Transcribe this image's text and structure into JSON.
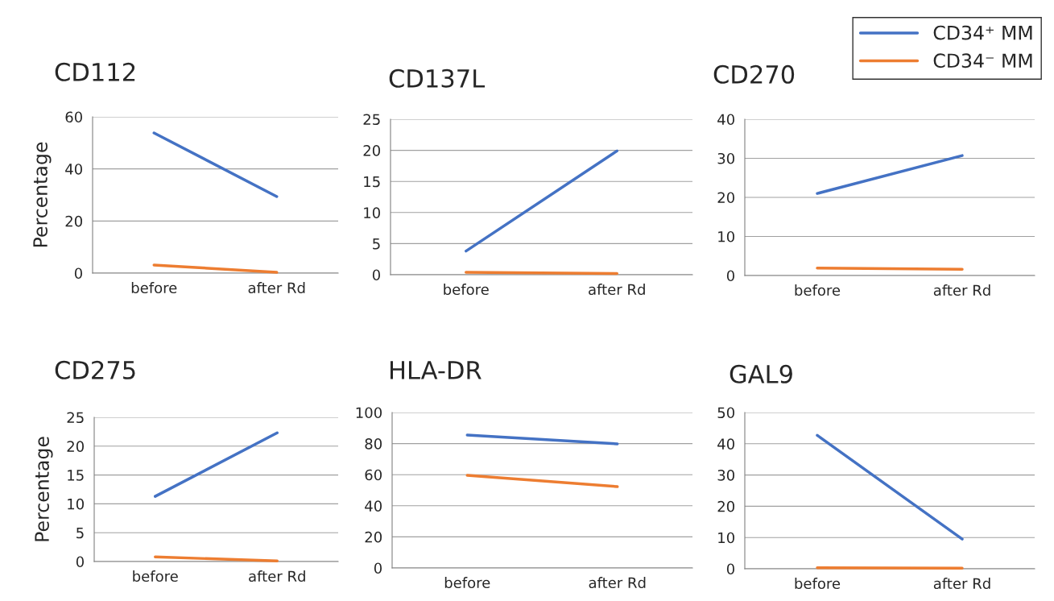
{
  "chart_data": [
    {
      "type": "line",
      "title": "CD112",
      "ylabel": "Percentage",
      "categories": [
        "before",
        "after Rd"
      ],
      "ylim": [
        0,
        60
      ],
      "yticks": [
        0,
        20,
        40,
        60
      ],
      "grid": "y",
      "legend": "top right",
      "series": [
        {
          "name": "CD34⁺ MM",
          "color": "#4472c4",
          "values": [
            53.8,
            29.4
          ]
        },
        {
          "name": "CD34⁻ MM",
          "color": "#ed7d31",
          "values": [
            3.1,
            0.3
          ]
        }
      ]
    },
    {
      "type": "line",
      "title": "CD137L",
      "categories": [
        "before",
        "after Rd"
      ],
      "ylim": [
        0,
        25
      ],
      "yticks": [
        0,
        5,
        10,
        15,
        20,
        25
      ],
      "grid": "y",
      "series": [
        {
          "color": "#4472c4",
          "values": [
            3.8,
            19.9
          ]
        },
        {
          "color": "#ed7d31",
          "values": [
            0.4,
            0.2
          ]
        }
      ]
    },
    {
      "type": "line",
      "title": "CD270",
      "categories": [
        "before",
        "after Rd"
      ],
      "ylim": [
        0,
        40
      ],
      "yticks": [
        0,
        10,
        20,
        30,
        40
      ],
      "grid": "y",
      "series": [
        {
          "color": "#4472c4",
          "values": [
            21.0,
            30.7
          ]
        },
        {
          "color": "#ed7d31",
          "values": [
            1.9,
            1.6
          ]
        }
      ]
    },
    {
      "type": "line",
      "title": "CD275",
      "ylabel": "Percentage",
      "categories": [
        "before",
        "after Rd"
      ],
      "ylim": [
        0,
        25
      ],
      "yticks": [
        0,
        5,
        10,
        15,
        20,
        25
      ],
      "grid": "y",
      "series": [
        {
          "color": "#4472c4",
          "values": [
            11.3,
            22.3
          ]
        },
        {
          "color": "#ed7d31",
          "values": [
            0.8,
            0.1
          ]
        }
      ]
    },
    {
      "type": "line",
      "title": "HLA-DR",
      "categories": [
        "before",
        "after Rd"
      ],
      "ylim": [
        0,
        100
      ],
      "yticks": [
        0,
        20,
        40,
        60,
        80,
        100
      ],
      "grid": "y",
      "series": [
        {
          "color": "#4472c4",
          "values": [
            85.5,
            79.8
          ]
        },
        {
          "color": "#ed7d31",
          "values": [
            59.6,
            52.3
          ]
        }
      ]
    },
    {
      "type": "line",
      "title": "GAL9",
      "categories": [
        "before",
        "after Rd"
      ],
      "ylim": [
        0,
        50
      ],
      "yticks": [
        0,
        10,
        20,
        30,
        40,
        50
      ],
      "grid": "y",
      "series": [
        {
          "color": "#4472c4",
          "values": [
            42.7,
            9.5
          ]
        },
        {
          "color": "#ed7d31",
          "values": [
            0.3,
            0.2
          ]
        }
      ]
    }
  ]
}
